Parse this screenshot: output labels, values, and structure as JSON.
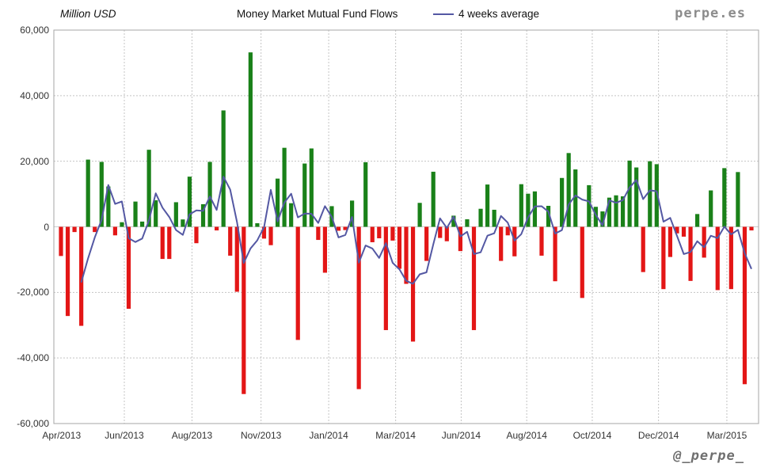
{
  "header": {
    "y_axis_title": "Million USD",
    "title": "Money Market Mutual Fund Flows",
    "legend_label": "4 weeks average",
    "brand": "perpe.es"
  },
  "footer": {
    "handle": "@_perpe_"
  },
  "colors": {
    "positive_bar": "#1a8119",
    "negative_bar": "#e31616",
    "average_line": "#5458a3",
    "grid": "#c4c4c4",
    "zero_line": "#cccccc",
    "plot_border": "#a6a6a6",
    "text": "#333333",
    "brand_text": "#8c8c8c"
  },
  "chart_data": {
    "type": "bar",
    "title": "Money Market Mutual Fund Flows",
    "xlabel": "",
    "ylabel": "Million USD",
    "ylim": [
      -60000,
      60000
    ],
    "grid": true,
    "legend_position": "top",
    "y_ticks": [
      {
        "value": 60000,
        "label": "60,000"
      },
      {
        "value": 40000,
        "label": "40,000"
      },
      {
        "value": 20000,
        "label": "20,000"
      },
      {
        "value": 0,
        "label": "0"
      },
      {
        "value": -20000,
        "label": "-20,000"
      },
      {
        "value": -40000,
        "label": "-40,000"
      },
      {
        "value": -60000,
        "label": "-60,000"
      }
    ],
    "x_ticks": [
      {
        "label": "Apr/2013",
        "pos": 0.011,
        "gridline": false
      },
      {
        "label": "Jun/2013",
        "pos": 0.1,
        "gridline": true
      },
      {
        "label": "Aug/2013",
        "pos": 0.196,
        "gridline": true
      },
      {
        "label": "Nov/2013",
        "pos": 0.294,
        "gridline": true
      },
      {
        "label": "Jan/2014",
        "pos": 0.39,
        "gridline": true
      },
      {
        "label": "Mar/2014",
        "pos": 0.485,
        "gridline": true
      },
      {
        "label": "Jun/2014",
        "pos": 0.578,
        "gridline": true
      },
      {
        "label": "Aug/2014",
        "pos": 0.671,
        "gridline": true
      },
      {
        "label": "Oct/2014",
        "pos": 0.764,
        "gridline": true
      },
      {
        "label": "Dec/2014",
        "pos": 0.858,
        "gridline": true
      },
      {
        "label": "Mar/2015",
        "pos": 0.955,
        "gridline": true
      }
    ],
    "series": [
      {
        "name": "Money Market Mutual Fund Flows (weekly, million USD)",
        "style": "bar",
        "values": [
          -8900,
          -27200,
          -1600,
          -30200,
          20500,
          -1600,
          19800,
          12300,
          -2600,
          1400,
          -25000,
          7700,
          1600,
          23500,
          8100,
          -9800,
          -9800,
          7500,
          2250,
          15300,
          -5000,
          6900,
          19800,
          -1100,
          35500,
          -8800,
          -19800,
          -51000,
          53200,
          1100,
          -3600,
          -5600,
          14700,
          24100,
          7200,
          -34500,
          19300,
          23900,
          -4000,
          -14000,
          6300,
          -1200,
          -1000,
          8000,
          -49500,
          19700,
          -4700,
          -3500,
          -31500,
          -4200,
          -12800,
          -17400,
          -35000,
          7300,
          -10400,
          16800,
          -3400,
          -4400,
          3400,
          -7400,
          2300,
          -31500,
          5500,
          12900,
          5200,
          -10400,
          -2600,
          -9000,
          13000,
          10100,
          10800,
          -8800,
          6400,
          -16600,
          14900,
          22500,
          17500,
          -21700,
          12700,
          6100,
          4700,
          8900,
          9600,
          9300,
          20200,
          18100,
          -13800,
          20000,
          19100,
          -19000,
          -9200,
          -2000,
          -3000,
          -16500,
          3900,
          -9400,
          11100,
          -19300,
          17900,
          -19000,
          16700,
          -48000,
          -1100
        ]
      },
      {
        "name": "4 weeks average",
        "style": "line",
        "derived": "trailing_mean_4_of_series_0"
      }
    ]
  }
}
